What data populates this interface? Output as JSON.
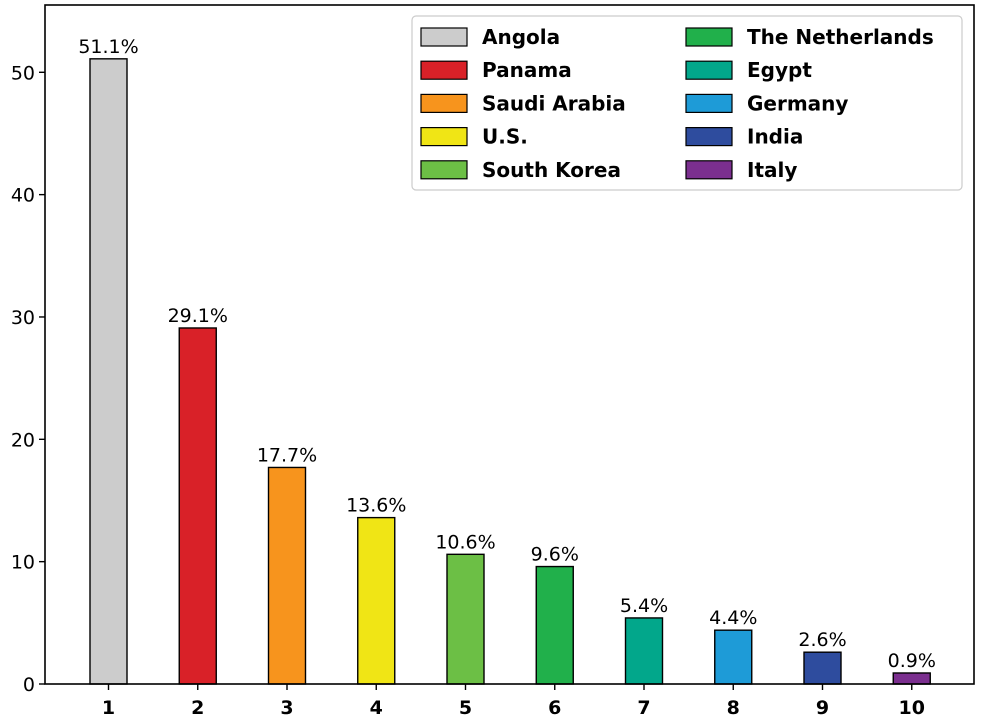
{
  "chart_data": {
    "type": "bar",
    "categories": [
      "1",
      "2",
      "3",
      "4",
      "5",
      "6",
      "7",
      "8",
      "9",
      "10"
    ],
    "values": [
      51.1,
      29.1,
      17.7,
      13.6,
      10.6,
      9.6,
      5.4,
      4.4,
      2.6,
      0.9
    ],
    "data_labels": [
      "51.1%",
      "29.1%",
      "17.7%",
      "13.6%",
      "10.6%",
      "9.6%",
      "5.4%",
      "4.4%",
      "2.6%",
      "0.9%"
    ],
    "series_names": [
      "Angola",
      "Panama",
      "Saudi Arabia",
      "U.S.",
      "South Korea",
      "The Netherlands",
      "Egypt",
      "Germany",
      "India",
      "Italy"
    ],
    "colors": [
      "#cccccc",
      "#d92128",
      "#f7941d",
      "#f0e515",
      "#6cbf45",
      "#21b04b",
      "#02a78b",
      "#1e9bd7",
      "#2e4c9e",
      "#7b2f8f"
    ],
    "yticks": [
      "0",
      "10",
      "20",
      "30",
      "40",
      "50"
    ],
    "ylim": [
      0,
      55.5
    ],
    "xlabel": "",
    "ylabel": "",
    "title": "",
    "grid": false,
    "legend_position": "top-right",
    "legend_columns": 2
  }
}
